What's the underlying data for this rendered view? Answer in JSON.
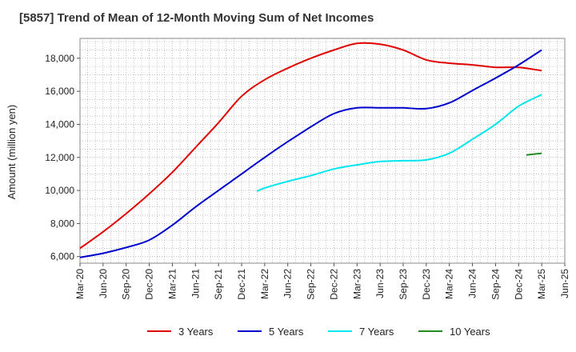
{
  "chart_data": {
    "type": "line",
    "title": "[5857]  Trend of Mean of 12-Month Moving Sum of Net Incomes",
    "ylabel": "Amount (million yen)",
    "xlabel": "",
    "ylim": [
      5600,
      19200
    ],
    "yticks": [
      6000,
      8000,
      10000,
      12000,
      14000,
      16000,
      18000
    ],
    "ytick_labels": [
      "6,000",
      "8,000",
      "10,000",
      "12,000",
      "14,000",
      "16,000",
      "18,000"
    ],
    "xticks": [
      "Mar-20",
      "Jun-20",
      "Sep-20",
      "Dec-20",
      "Mar-21",
      "Jun-21",
      "Sep-21",
      "Dec-21",
      "Mar-22",
      "Jun-22",
      "Sep-22",
      "Dec-22",
      "Mar-23",
      "Jun-23",
      "Sep-23",
      "Dec-23",
      "Mar-24",
      "Jun-24",
      "Sep-24",
      "Dec-24",
      "Mar-25",
      "Jun-25"
    ],
    "grid": true,
    "legend_position": "bottom",
    "series": [
      {
        "name": "3 Years",
        "color": "#e00000",
        "points": [
          [
            "Mar-20",
            6500
          ],
          [
            "Jun-20",
            7500
          ],
          [
            "Sep-20",
            8600
          ],
          [
            "Dec-20",
            9800
          ],
          [
            "Mar-21",
            11100
          ],
          [
            "Jun-21",
            12600
          ],
          [
            "Sep-21",
            14100
          ],
          [
            "Dec-21",
            15700
          ],
          [
            "Mar-22",
            16700
          ],
          [
            "Jun-22",
            17400
          ],
          [
            "Sep-22",
            18000
          ],
          [
            "Dec-22",
            18500
          ],
          [
            "Mar-23",
            18900
          ],
          [
            "Jun-23",
            18850
          ],
          [
            "Sep-23",
            18500
          ],
          [
            "Dec-23",
            17900
          ],
          [
            "Mar-24",
            17700
          ],
          [
            "Jun-24",
            17600
          ],
          [
            "Sep-24",
            17450
          ],
          [
            "Dec-24",
            17450
          ],
          [
            "Mar-25",
            17250
          ]
        ]
      },
      {
        "name": "5 Years",
        "color": "#0000cc",
        "points": [
          [
            "Mar-20",
            5950
          ],
          [
            "Jun-20",
            6200
          ],
          [
            "Sep-20",
            6550
          ],
          [
            "Dec-20",
            7000
          ],
          [
            "Mar-21",
            7900
          ],
          [
            "Jun-21",
            9000
          ],
          [
            "Sep-21",
            10000
          ],
          [
            "Dec-21",
            11000
          ],
          [
            "Mar-22",
            12000
          ],
          [
            "Jun-22",
            12950
          ],
          [
            "Sep-22",
            13850
          ],
          [
            "Dec-22",
            14650
          ],
          [
            "Mar-23",
            15000
          ],
          [
            "Jun-23",
            15000
          ],
          [
            "Sep-23",
            15000
          ],
          [
            "Dec-23",
            14950
          ],
          [
            "Mar-24",
            15300
          ],
          [
            "Jun-24",
            16050
          ],
          [
            "Sep-24",
            16800
          ],
          [
            "Dec-24",
            17600
          ],
          [
            "Mar-25",
            18500
          ]
        ]
      },
      {
        "name": "7 Years",
        "color": "#00e5ee",
        "points": [
          [
            "Feb-22",
            9950
          ],
          [
            "Mar-22",
            10150
          ],
          [
            "Jun-22",
            10550
          ],
          [
            "Sep-22",
            10900
          ],
          [
            "Dec-22",
            11300
          ],
          [
            "Mar-23",
            11550
          ],
          [
            "Jun-23",
            11750
          ],
          [
            "Sep-23",
            11800
          ],
          [
            "Dec-23",
            11850
          ],
          [
            "Mar-24",
            12250
          ],
          [
            "Jun-24",
            13100
          ],
          [
            "Sep-24",
            14000
          ],
          [
            "Dec-24",
            15100
          ],
          [
            "Mar-25",
            15800
          ]
        ]
      },
      {
        "name": "10 Years",
        "color": "#228b22",
        "points": [
          [
            "Jan-25",
            12150
          ],
          [
            "Mar-25",
            12250
          ]
        ]
      }
    ]
  }
}
